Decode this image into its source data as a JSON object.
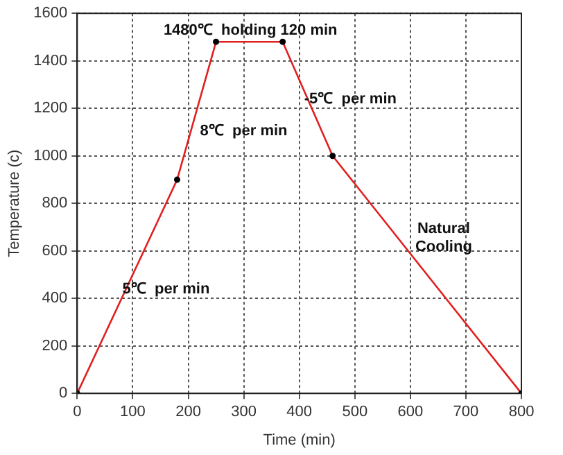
{
  "chart_data": {
    "type": "line",
    "x": [
      0,
      180,
      250,
      370,
      460,
      800
    ],
    "series": [
      {
        "color": "#e02020",
        "values": [
          0,
          900,
          1480,
          1480,
          1000,
          0
        ]
      }
    ],
    "xlabel": "Time (min)",
    "ylabel": "Temperature (c)",
    "xlim": [
      0,
      800
    ],
    "xticks": [
      0,
      100,
      200,
      300,
      400,
      500,
      600,
      700,
      800
    ],
    "ylim": [
      0,
      1600
    ],
    "yticks": [
      0,
      200,
      400,
      600,
      800,
      1000,
      1200,
      1400,
      1600
    ],
    "grid": true,
    "marker": "circle",
    "line_style": "solid",
    "legend": false,
    "annotations": [
      "1480℃  holding 120 min",
      "8℃  per min",
      "-5℃  per min",
      "Natural\nCooling",
      "5℃  per min"
    ]
  }
}
